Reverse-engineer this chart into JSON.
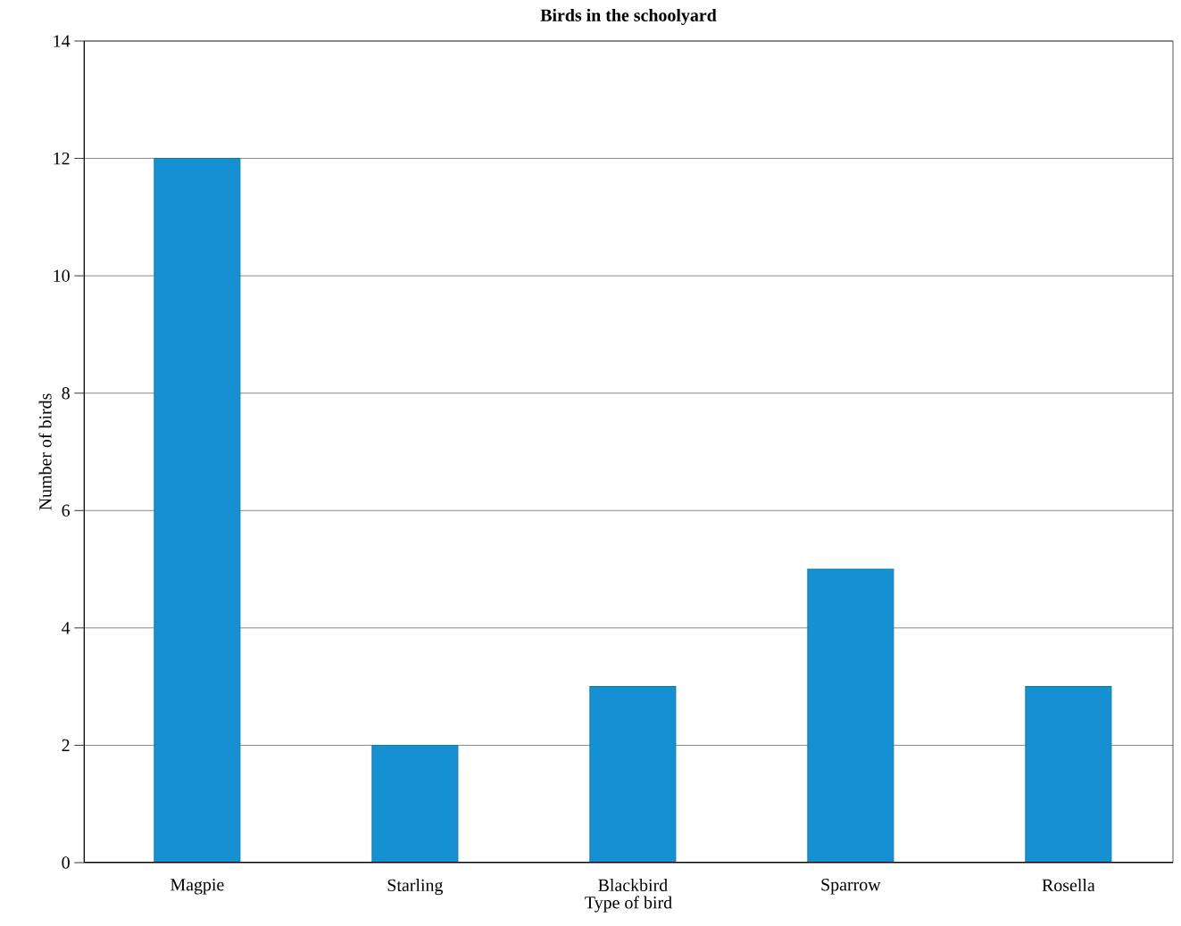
{
  "chart_data": {
    "type": "bar",
    "title": "Birds in the schoolyard",
    "xlabel": "Type of bird",
    "ylabel": "Number of birds",
    "categories": [
      "Magpie",
      "Starling",
      "Blackbird",
      "Sparrow",
      "Rosella"
    ],
    "values": [
      12,
      2,
      3,
      5,
      3
    ],
    "color": "#1590d2",
    "ylim": [
      0,
      14
    ],
    "yticks": [
      0,
      2,
      4,
      6,
      8,
      10,
      12,
      14
    ],
    "grid": "y"
  }
}
